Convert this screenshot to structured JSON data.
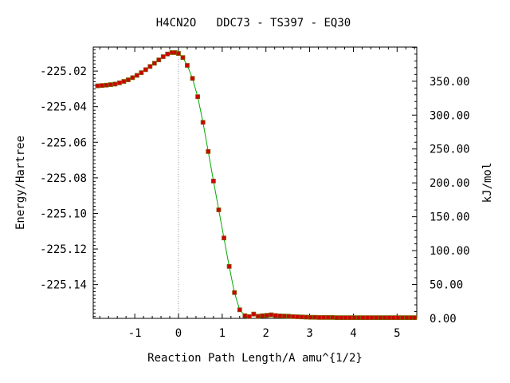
{
  "chart_data": {
    "type": "line",
    "title": "H4CN2O   DDC73 - TS397 - EQ30",
    "xlabel": "Reaction Path Length/A amu^{1/2}",
    "ylabel": "Energy/Hartree",
    "y2label": "kJ/mol",
    "xlim": [
      -1.95,
      5.45
    ],
    "ylim": [
      -225.159,
      -225.0065
    ],
    "y2lim": [
      0.0,
      400.4
    ],
    "x_ticks": [
      -1,
      0,
      1,
      2,
      3,
      4,
      5
    ],
    "x_tick_labels": [
      "-1",
      "0",
      "1",
      "2",
      "3",
      "4",
      "5"
    ],
    "y_ticks": [
      -225.02,
      -225.04,
      -225.06,
      -225.08,
      -225.1,
      -225.12,
      -225.14
    ],
    "y_tick_labels": [
      "-225.02",
      "-225.04",
      "-225.06",
      "-225.08",
      "-225.10",
      "-225.12",
      "-225.14"
    ],
    "y2_ticks": [
      350,
      300,
      250,
      200,
      150,
      100,
      50,
      0
    ],
    "y2_tick_labels": [
      "350.00",
      "300.00",
      "250.00",
      "200.00",
      "150.00",
      "100.00",
      "50.00",
      "0.00"
    ],
    "ts_x": 0.0,
    "grid": false,
    "colors": {
      "line": "#00aa00",
      "marker": "#cc0000",
      "marker_edge": "#806000",
      "ts_line": "#999999"
    },
    "series": [
      {
        "x": [
          -1.85,
          -1.75,
          -1.65,
          -1.55,
          -1.45,
          -1.35,
          -1.25,
          -1.15,
          -1.05,
          -0.95,
          -0.85,
          -0.75,
          -0.65,
          -0.55,
          -0.45,
          -0.35,
          -0.25,
          -0.15,
          -0.08,
          0.0,
          0.1,
          0.2,
          0.32,
          0.44,
          0.56,
          0.68,
          0.8,
          0.92,
          1.04,
          1.16,
          1.28,
          1.4,
          1.52,
          1.62,
          1.72,
          1.82,
          1.92,
          2.02,
          2.12,
          2.22,
          2.32,
          2.42,
          2.52,
          2.62,
          2.72,
          2.82,
          2.92,
          3.02,
          3.12,
          3.22,
          3.32,
          3.42,
          3.52,
          3.62,
          3.72,
          3.82,
          3.92,
          4.02,
          4.12,
          4.22,
          4.32,
          4.42,
          4.52,
          4.62,
          4.72,
          4.82,
          4.92,
          5.02,
          5.12,
          5.22,
          5.32,
          5.4
        ],
        "y": [
          -225.0283,
          -225.0281,
          -225.0279,
          -225.0276,
          -225.0273,
          -225.0266,
          -225.0258,
          -225.0249,
          -225.0237,
          -225.0224,
          -225.0209,
          -225.0192,
          -225.0174,
          -225.0156,
          -225.0137,
          -225.0119,
          -225.0104,
          -225.0096,
          -225.0096,
          -225.0101,
          -225.0124,
          -225.0168,
          -225.0241,
          -225.0344,
          -225.0488,
          -225.0652,
          -225.0818,
          -225.098,
          -225.1138,
          -225.1298,
          -225.1445,
          -225.1542,
          -225.1575,
          -225.158,
          -225.1566,
          -225.1578,
          -225.1575,
          -225.1573,
          -225.157,
          -225.1574,
          -225.1576,
          -225.1577,
          -225.1578,
          -225.158,
          -225.1581,
          -225.1582,
          -225.1583,
          -225.1584,
          -225.1584,
          -225.1585,
          -225.1585,
          -225.1585,
          -225.1585,
          -225.1586,
          -225.1586,
          -225.1586,
          -225.1586,
          -225.1586,
          -225.1586,
          -225.1586,
          -225.1586,
          -225.1586,
          -225.1586,
          -225.1586,
          -225.1586,
          -225.1586,
          -225.1586,
          -225.1586,
          -225.1586,
          -225.1586,
          -225.1586,
          -225.1586
        ]
      }
    ]
  }
}
